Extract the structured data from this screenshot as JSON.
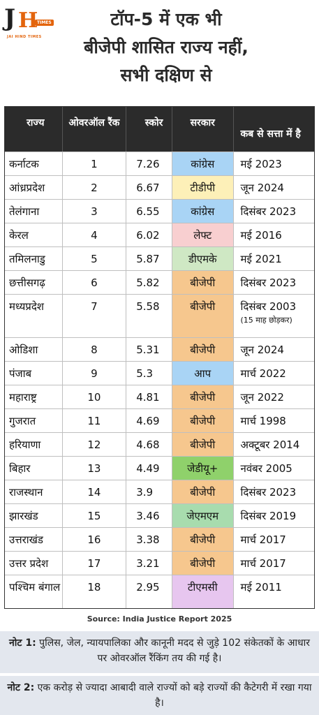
{
  "logo": {
    "letters_left": "J",
    "letters_right": "H",
    "badge": "TIMES",
    "subtitle": "JAI HIND TIMES"
  },
  "title": {
    "line1": "टॉप-5 में एक भी",
    "line2": "बीजेपी शासित राज्य नहीं,",
    "line3": "सभी दक्षिण से"
  },
  "chart_data": {
    "type": "table",
    "columns": [
      "राज्य",
      "ओवरऑल रैंक",
      "स्कोर",
      "सरकार",
      "कब से सत्ता में है"
    ],
    "rows": [
      {
        "state": "कर्नाटक",
        "rank": "1",
        "score": "7.26",
        "govt": "कांग्रेस",
        "since": "मई 2023"
      },
      {
        "state": "आंध्रप्रदेश",
        "rank": "2",
        "score": "6.67",
        "govt": "टीडीपी",
        "since": "जून 2024"
      },
      {
        "state": "तेलंगाना",
        "rank": "3",
        "score": "6.55",
        "govt": "कांग्रेस",
        "since": "दिसंबर 2023"
      },
      {
        "state": "केरल",
        "rank": "4",
        "score": "6.02",
        "govt": "लेफ्ट",
        "since": "मई 2016"
      },
      {
        "state": "तमिलनाडु",
        "rank": "5",
        "score": "5.87",
        "govt": "डीएमके",
        "since": "मई 2021"
      },
      {
        "state": "छत्तीसगढ़",
        "rank": "6",
        "score": "5.82",
        "govt": "बीजेपी",
        "since": "दिसंबर 2023"
      },
      {
        "state": "मध्यप्रदेश",
        "rank": "7",
        "score": "5.58",
        "govt": "बीजेपी",
        "since": "दिसंबर 2003",
        "since_note": "(15 माह छोड़कर)"
      },
      {
        "state": "ओडिशा",
        "rank": "8",
        "score": "5.31",
        "govt": "बीजेपी",
        "since": "जून 2024"
      },
      {
        "state": "पंजाब",
        "rank": "9",
        "score": "5.3",
        "govt": "आप",
        "since": "मार्च 2022"
      },
      {
        "state": "महाराष्ट्र",
        "rank": "10",
        "score": "4.81",
        "govt": "बीजेपी",
        "since": "जून 2022"
      },
      {
        "state": "गुजरात",
        "rank": "11",
        "score": "4.69",
        "govt": "बीजेपी",
        "since": "मार्च 1998"
      },
      {
        "state": "हरियाणा",
        "rank": "12",
        "score": "4.68",
        "govt": "बीजेपी",
        "since": "अक्टूबर 2014"
      },
      {
        "state": "बिहार",
        "rank": "13",
        "score": "4.49",
        "govt": "जेडीयू+",
        "since": "नवंबर 2005"
      },
      {
        "state": "राजस्थान",
        "rank": "14",
        "score": "3.9",
        "govt": "बीजेपी",
        "since": "दिसंबर 2023"
      },
      {
        "state": "झारखंड",
        "rank": "15",
        "score": "3.46",
        "govt": "जेएमएम",
        "since": "दिसंबर 2019"
      },
      {
        "state": "उत्तराखंड",
        "rank": "16",
        "score": "3.38",
        "govt": "बीजेपी",
        "since": "मार्च 2017"
      },
      {
        "state": "उत्तर प्रदेश",
        "rank": "17",
        "score": "3.21",
        "govt": "बीजेपी",
        "since": "मार्च 2017"
      },
      {
        "state": "पश्चिम बंगाल",
        "rank": "18",
        "score": "2.95",
        "govt": "टीएमसी",
        "since": "मई 2011"
      }
    ],
    "party_colors": {
      "कांग्रेस": "#a9d4f5",
      "टीडीपी": "#fdf0b8",
      "लेफ्ट": "#f8cfd0",
      "डीएमके": "#cfe8c4",
      "बीजेपी": "#f6c78e",
      "आप": "#a9d4f5",
      "जेडीयू+": "#8fd16b",
      "जेएमएम": "#a8dcae",
      "टीएमसी": "#e7c6ef"
    }
  },
  "source": "Source: India Justice Report 2025",
  "notes": [
    {
      "label": "नोट 1:",
      "text": "पुलिस, जेल, न्यायपालिका और कानूनी मदद से जुड़े 102 संकेतकों के आधार पर ओवरऑल रैंकिंग तय की गई है।"
    },
    {
      "label": "नोट 2:",
      "text": "एक करोड़ से ज्यादा आबादी वाले राज्यों को बड़े राज्यों की कैटेगरी में रखा गया है।"
    }
  ]
}
